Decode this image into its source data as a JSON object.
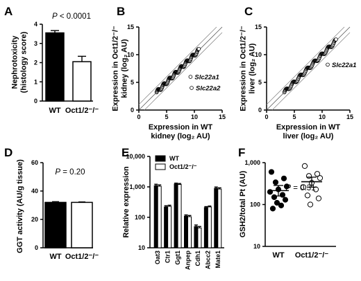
{
  "chart_data": [
    {
      "panel": "A",
      "type": "bar",
      "categories": [
        "WT",
        "Oct1/2⁻/⁻"
      ],
      "values": [
        3.55,
        2.05
      ],
      "errors": [
        0.12,
        0.28
      ],
      "fills": [
        "#000000",
        "#ffffff"
      ],
      "ylabel_lines": [
        "Nephrotoxicity",
        "(histology score)"
      ],
      "ylim": [
        0,
        4
      ],
      "yticks": [
        "0",
        "1",
        "2",
        "3",
        "4"
      ],
      "annotation_prefix": "P",
      "annotation_value": " < 0.0001"
    },
    {
      "panel": "B",
      "type": "scatter",
      "xlabel_lines": [
        "Expression in WT",
        "kidney (log₂ AU)"
      ],
      "ylabel_lines": [
        "Expression in Oct1/2⁻/⁻",
        "kidney (log₂ AU)"
      ],
      "xlim": [
        0,
        15
      ],
      "ylim": [
        0,
        15
      ],
      "xticks": [
        "0",
        "5",
        "10",
        "15"
      ],
      "yticks": [
        "0",
        "5",
        "10",
        "15"
      ],
      "trend": {
        "from": 3.2,
        "to": 10.8,
        "spread": 0.3
      },
      "outliers": [
        {
          "label": "Slc22a1",
          "x": 9.3,
          "y": 6.0
        },
        {
          "label": "Slc22a2",
          "x": 9.5,
          "y": 4.0
        }
      ]
    },
    {
      "panel": "C",
      "type": "scatter",
      "xlabel_lines": [
        "Expression in WT",
        "liver (log₂ AU)"
      ],
      "ylabel_lines": [
        "Expression in Oct1/2⁻/⁻",
        "liver (log₂ AU)"
      ],
      "xlim": [
        0,
        15
      ],
      "ylim": [
        0,
        15
      ],
      "xticks": [
        "0",
        "5",
        "10",
        "15"
      ],
      "yticks": [
        "0",
        "5",
        "10",
        "15"
      ],
      "trend": {
        "from": 3.2,
        "to": 12.5,
        "spread": 0.3
      },
      "outliers": [
        {
          "label": "Slc22a1",
          "x": 11.0,
          "y": 8.2
        }
      ]
    },
    {
      "panel": "D",
      "type": "bar",
      "categories": [
        "WT",
        "Oct1/2⁻/⁻"
      ],
      "values": [
        32,
        32
      ],
      "errors": [
        0.5,
        0.3
      ],
      "fills": [
        "#000000",
        "#ffffff"
      ],
      "ylabel_lines": [
        "GGT activity (AU/g tissue)"
      ],
      "ylim": [
        0,
        60
      ],
      "yticks": [
        "0",
        "20",
        "40",
        "60"
      ],
      "annotation_prefix": "P",
      "annotation_value": " = 0.20"
    },
    {
      "panel": "E",
      "type": "bar",
      "scale": "log",
      "categories": [
        "Oat3",
        "Ctr1",
        "Ggt1",
        "Anpep",
        "Cdh1",
        "Abcc2",
        "Mate1"
      ],
      "ylabel_lines": [
        "Relative expression"
      ],
      "ylim": [
        10,
        10000
      ],
      "yticks": [
        "10",
        "100",
        "1,000",
        "10,000"
      ],
      "legend_position": "top",
      "series": [
        {
          "name": "WT",
          "fill": "#000000",
          "values": [
            1100,
            220,
            1250,
            110,
            50,
            210,
            900
          ],
          "errors": [
            120,
            20,
            80,
            10,
            6,
            15,
            90
          ]
        },
        {
          "name": "Oct1/2⁻/⁻",
          "fill": "#ffffff",
          "values": [
            1050,
            230,
            1200,
            105,
            45,
            220,
            850
          ],
          "errors": [
            110,
            20,
            90,
            10,
            5,
            15,
            80
          ]
        }
      ]
    },
    {
      "panel": "F",
      "type": "scatter",
      "scale": "log",
      "categories": [
        "WT",
        "Oct1/2⁻/⁻"
      ],
      "ylabel_lines": [
        "GSH2/total Pt (AU)"
      ],
      "ylim": [
        10,
        1000
      ],
      "yticks": [
        "10",
        "100",
        "1,000"
      ],
      "annotation_prefix": "P",
      "annotation_value": " = 0.31",
      "groups": [
        {
          "name": "WT",
          "fill": "#000000",
          "mean": 215,
          "sem_low": 160,
          "sem_high": 285,
          "points": [
            600,
            420,
            340,
            270,
            230,
            200,
            170,
            150,
            130,
            110,
            95,
            80
          ]
        },
        {
          "name": "Oct1/2⁻/⁻",
          "fill": "#ffffff",
          "mean": 350,
          "sem_low": 260,
          "sem_high": 450,
          "points": [
            830,
            540,
            480,
            430,
            330,
            260,
            230,
            165,
            140,
            100
          ]
        }
      ]
    }
  ]
}
